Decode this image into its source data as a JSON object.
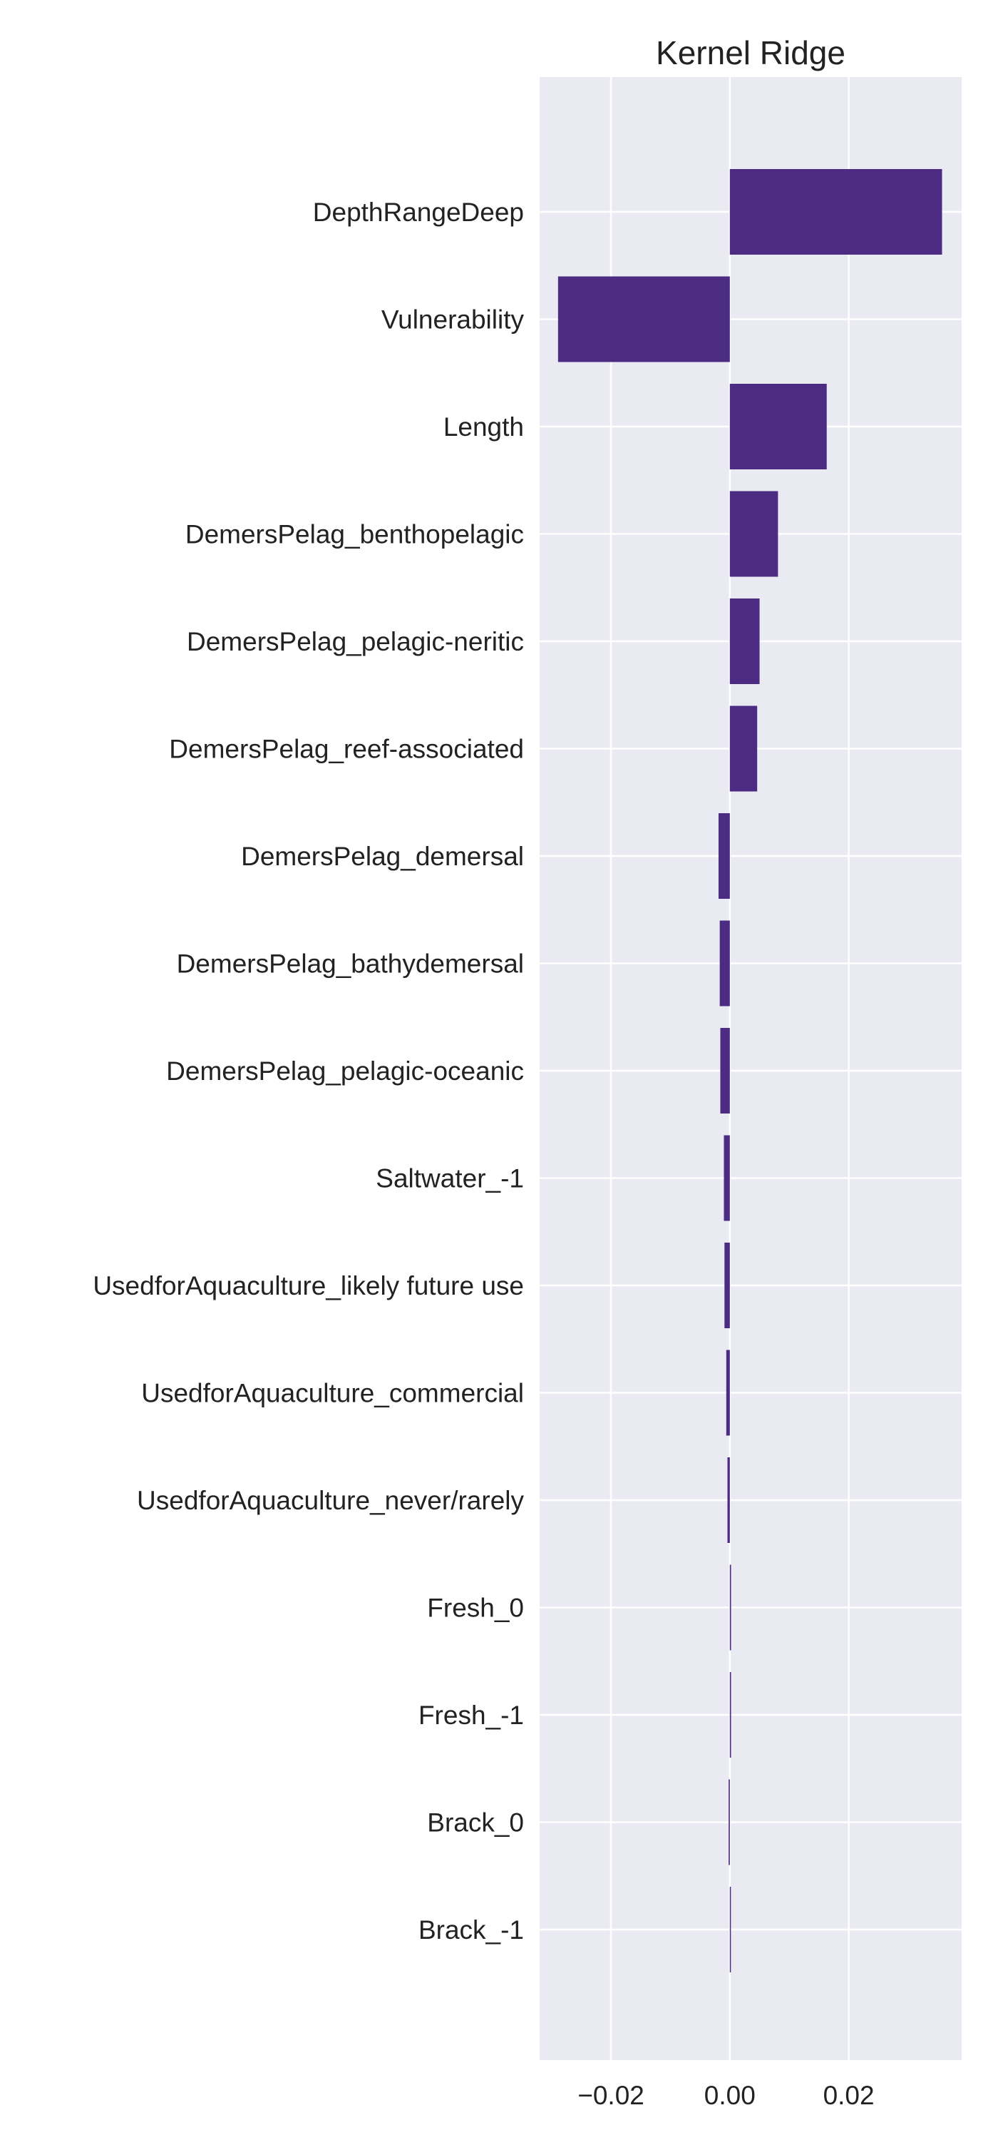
{
  "chart_data": {
    "type": "bar",
    "orientation": "horizontal",
    "title": "Kernel Ridge",
    "xlabel": "",
    "ylabel": "",
    "xlim": [
      -0.032,
      0.039
    ],
    "xticks": [
      -0.02,
      0.0,
      0.02
    ],
    "xtick_labels": [
      "−0.02",
      "0.00",
      "0.02"
    ],
    "grid": true,
    "colors": {
      "bar": "#4b2c82",
      "plot_bg": "#eaeaf2",
      "grid": "#ffffff"
    },
    "categories": [
      "DepthRangeDeep",
      "Vulnerability",
      "Length",
      "DemersPelag_benthopelagic",
      "DemersPelag_pelagic-neritic",
      "DemersPelag_reef-associated",
      "DemersPelag_demersal",
      "DemersPelag_bathydemersal",
      "DemersPelag_pelagic-oceanic",
      "Saltwater_-1",
      "UsedforAquaculture_likely future use",
      "UsedforAquaculture_commercial",
      "UsedforAquaculture_never/rarely",
      "Fresh_0",
      "Fresh_-1",
      "Brack_0",
      "Brack_-1"
    ],
    "values": [
      0.0357,
      -0.0289,
      0.0163,
      0.0081,
      0.005,
      0.0046,
      -0.0019,
      -0.0017,
      -0.0016,
      -0.001,
      -0.0009,
      -0.0006,
      -0.0004,
      0.0002,
      0.0002,
      -0.0002,
      0.0001
    ]
  }
}
